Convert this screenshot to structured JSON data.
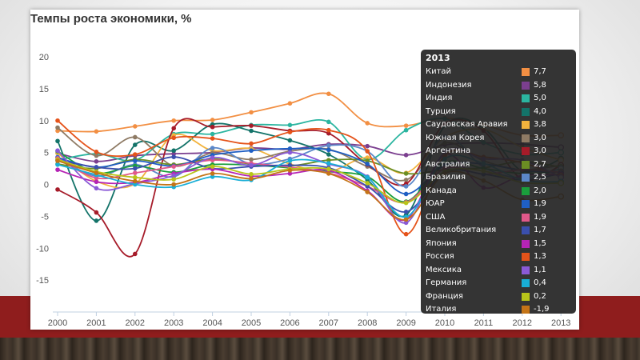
{
  "chart_data": {
    "type": "line",
    "title": "Темпы роста экономики, %",
    "x": [
      "2000",
      "2001",
      "2002",
      "2003",
      "2004",
      "2005",
      "2006",
      "2007",
      "2008",
      "2009",
      "2010",
      "2011",
      "2012",
      "2013"
    ],
    "yticks": [
      "20",
      "15",
      "10",
      "5",
      "0",
      "-5",
      "-10",
      "-15"
    ],
    "ylim": [
      -20,
      20
    ],
    "grid": false,
    "legend": "tooltip-right",
    "tooltip": {
      "year": "2013",
      "entries": [
        {
          "name": "Китай",
          "value": "7,7",
          "color": "#f28f43"
        },
        {
          "name": "Индонезия",
          "value": "5,8",
          "color": "#7b3f8f"
        },
        {
          "name": "Индия",
          "value": "5,0",
          "color": "#2bb5a0"
        },
        {
          "name": "Турция",
          "value": "4,0",
          "color": "#137369"
        },
        {
          "name": "Саудовская Аравия",
          "value": "3,8",
          "color": "#f2b33d"
        },
        {
          "name": "Южная Корея",
          "value": "3,0",
          "color": "#8e7a64"
        },
        {
          "name": "Аргентина",
          "value": "3,0",
          "color": "#a61b29"
        },
        {
          "name": "Австралия",
          "value": "2,7",
          "color": "#6b8e23"
        },
        {
          "name": "Бразилия",
          "value": "2,5",
          "color": "#5b87c9"
        },
        {
          "name": "Канада",
          "value": "2,0",
          "color": "#1a9e3c"
        },
        {
          "name": "ЮАР",
          "value": "1,9",
          "color": "#1f5fc4"
        },
        {
          "name": "США",
          "value": "1,9",
          "color": "#e0588a"
        },
        {
          "name": "Великобритания",
          "value": "1,7",
          "color": "#3a4fae"
        },
        {
          "name": "Япония",
          "value": "1,5",
          "color": "#b524b5"
        },
        {
          "name": "Россия",
          "value": "1,3",
          "color": "#e5531a"
        },
        {
          "name": "Мексика",
          "value": "1,1",
          "color": "#8a5ad6"
        },
        {
          "name": "Германия",
          "value": "0,4",
          "color": "#19aed6"
        },
        {
          "name": "Франция",
          "value": "0,2",
          "color": "#b8c41a"
        },
        {
          "name": "Италия",
          "value": "-1,9",
          "color": "#c47417"
        }
      ]
    },
    "series": [
      {
        "name": "Китай",
        "color": "#f28f43",
        "values": [
          8.4,
          8.3,
          9.1,
          10.0,
          10.1,
          11.3,
          12.7,
          14.2,
          9.6,
          9.2,
          10.4,
          9.3,
          7.7,
          7.7
        ]
      },
      {
        "name": "Индонезия",
        "color": "#7b3f8f",
        "values": [
          4.9,
          3.6,
          4.5,
          4.8,
          5.0,
          5.7,
          5.5,
          6.3,
          6.0,
          4.6,
          6.2,
          6.5,
          6.3,
          5.8
        ]
      },
      {
        "name": "Индия",
        "color": "#2bb5a0",
        "values": [
          3.8,
          4.8,
          3.8,
          7.9,
          7.9,
          9.3,
          9.3,
          9.8,
          3.9,
          8.5,
          10.3,
          6.6,
          4.7,
          5.0
        ]
      },
      {
        "name": "Турция",
        "color": "#137369",
        "values": [
          6.8,
          -5.7,
          6.2,
          5.3,
          9.4,
          8.4,
          6.9,
          4.7,
          0.7,
          -4.8,
          9.2,
          8.8,
          2.1,
          4.0
        ]
      },
      {
        "name": "Саудовская Аравия",
        "color": "#f2b33d",
        "values": [
          4.9,
          0.5,
          0.1,
          7.7,
          5.3,
          5.6,
          3.2,
          2.0,
          4.2,
          1.8,
          7.4,
          8.6,
          5.8,
          3.8
        ]
      },
      {
        "name": "Южная Корея",
        "color": "#8e7a64",
        "values": [
          8.9,
          4.5,
          7.4,
          2.9,
          4.9,
          3.9,
          5.2,
          5.5,
          2.8,
          0.7,
          6.5,
          3.7,
          2.3,
          3.0
        ]
      },
      {
        "name": "Аргентина",
        "color": "#a61b29",
        "values": [
          -0.8,
          -4.4,
          -10.9,
          8.8,
          9.0,
          9.2,
          8.4,
          8.0,
          3.1,
          0.1,
          9.5,
          8.4,
          0.8,
          3.0
        ]
      },
      {
        "name": "Австралия",
        "color": "#6b8e23",
        "values": [
          3.2,
          2.5,
          3.9,
          3.1,
          4.0,
          3.2,
          2.9,
          3.8,
          3.7,
          1.7,
          2.3,
          2.6,
          3.6,
          2.7
        ]
      },
      {
        "name": "Бразилия",
        "color": "#5b87c9",
        "values": [
          4.3,
          1.3,
          3.1,
          1.2,
          5.7,
          3.2,
          4.0,
          6.1,
          5.2,
          -0.3,
          7.5,
          2.7,
          1.0,
          2.5
        ]
      },
      {
        "name": "Канада",
        "color": "#1a9e3c",
        "values": [
          5.2,
          1.8,
          2.9,
          1.9,
          3.1,
          3.0,
          2.6,
          2.0,
          1.2,
          -2.7,
          3.4,
          2.5,
          1.7,
          2.0
        ]
      },
      {
        "name": "ЮАР",
        "color": "#1f5fc4",
        "values": [
          4.2,
          2.7,
          3.7,
          2.9,
          4.6,
          5.3,
          5.6,
          5.4,
          3.2,
          -1.5,
          3.0,
          3.2,
          2.2,
          1.9
        ]
      },
      {
        "name": "США",
        "color": "#e0588a",
        "values": [
          4.1,
          1.0,
          1.8,
          2.8,
          3.8,
          3.3,
          2.7,
          1.8,
          -0.3,
          -2.8,
          2.5,
          1.6,
          2.3,
          1.9
        ]
      },
      {
        "name": "Великобритания",
        "color": "#3a4fae",
        "values": [
          3.8,
          2.7,
          2.5,
          4.3,
          2.5,
          2.8,
          3.0,
          2.6,
          -0.3,
          -4.3,
          1.9,
          1.6,
          0.7,
          1.7
        ]
      },
      {
        "name": "Япония",
        "color": "#b524b5",
        "values": [
          2.3,
          0.4,
          0.3,
          1.7,
          2.4,
          1.3,
          1.7,
          2.2,
          -1.0,
          -5.5,
          4.7,
          -0.5,
          1.4,
          1.5
        ]
      },
      {
        "name": "Россия",
        "color": "#e5531a",
        "values": [
          10.0,
          5.1,
          4.7,
          7.3,
          7.2,
          6.4,
          8.2,
          8.5,
          5.2,
          -7.8,
          4.5,
          4.3,
          3.4,
          1.3
        ]
      },
      {
        "name": "Мексика",
        "color": "#8a5ad6",
        "values": [
          5.3,
          -0.6,
          0.1,
          1.4,
          4.2,
          3.0,
          5.0,
          3.2,
          1.2,
          -6.0,
          5.1,
          4.0,
          3.8,
          1.1
        ]
      },
      {
        "name": "Германия",
        "color": "#19aed6",
        "values": [
          3.1,
          1.5,
          0.0,
          -0.4,
          1.2,
          0.7,
          3.7,
          3.3,
          1.1,
          -5.1,
          4.0,
          3.3,
          0.7,
          0.4
        ]
      },
      {
        "name": "Франция",
        "color": "#b8c41a",
        "values": [
          3.9,
          2.0,
          1.1,
          0.8,
          2.8,
          1.6,
          2.4,
          2.4,
          0.2,
          -2.9,
          2.0,
          2.1,
          0.3,
          0.2
        ]
      },
      {
        "name": "Италия",
        "color": "#c47417",
        "values": [
          3.7,
          1.8,
          0.5,
          0.0,
          1.7,
          0.9,
          2.2,
          1.7,
          -1.2,
          -5.5,
          1.7,
          0.6,
          -2.4,
          -1.9
        ]
      }
    ]
  }
}
